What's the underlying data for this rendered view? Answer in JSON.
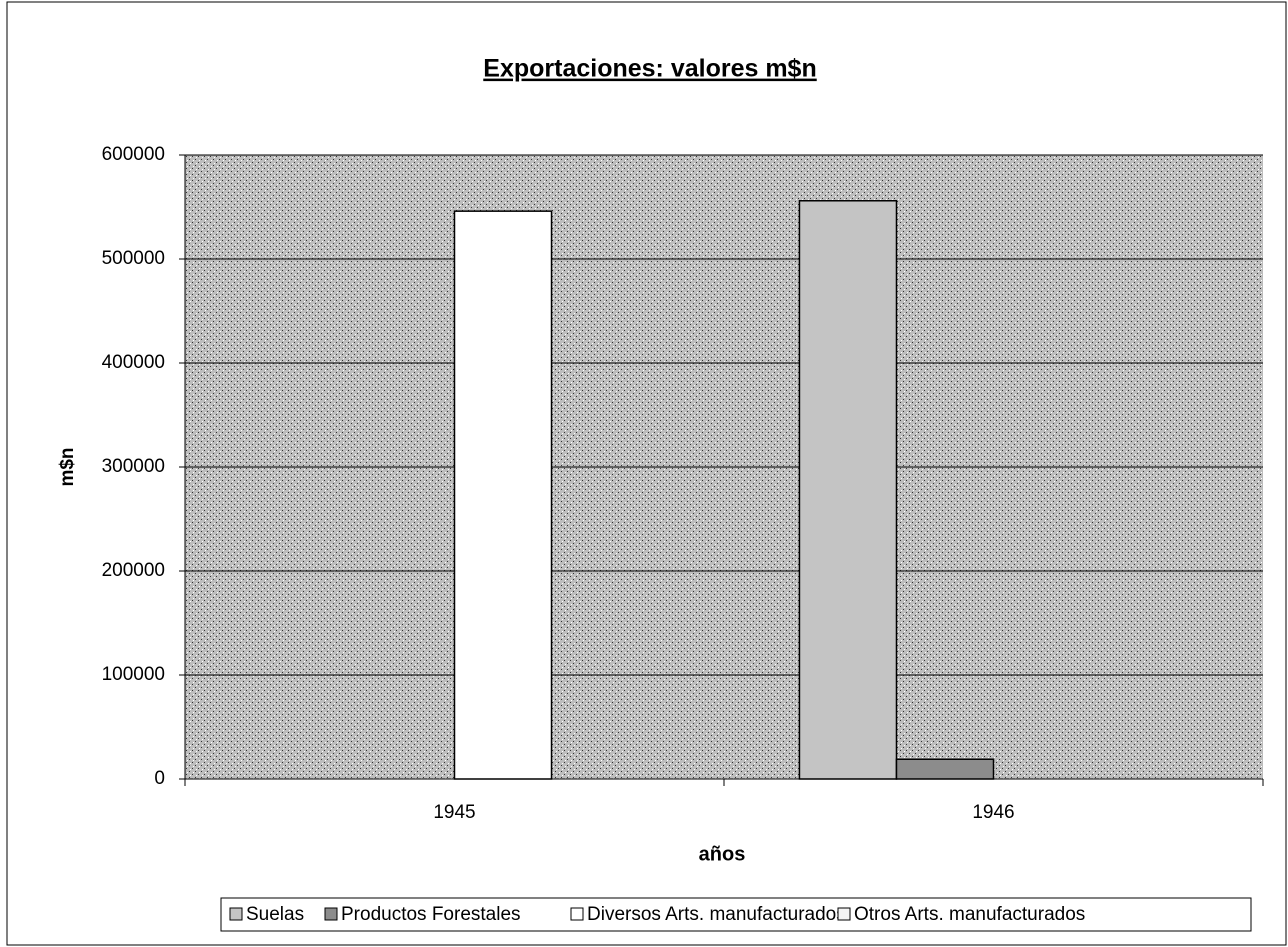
{
  "chart_data": {
    "type": "bar",
    "title": "Exportaciones: valores m$n",
    "xlabel": "años",
    "ylabel": "m$n",
    "categories": [
      "1945",
      "1946"
    ],
    "series": [
      {
        "name": "Suelas",
        "color": "#c4c4c4",
        "values": [
          0,
          556000
        ]
      },
      {
        "name": "Productos Forestales",
        "color": "#8c8c8c",
        "values": [
          0,
          19000
        ]
      },
      {
        "name": "Diversos Arts. manufacturados",
        "color": "#ffffff",
        "values": [
          546000,
          0
        ]
      },
      {
        "name": "Otros Arts. manufacturados",
        "color": "#f4f4f4",
        "values": [
          0,
          0
        ]
      }
    ],
    "ylim": [
      0,
      600000
    ],
    "yticks": [
      0,
      100000,
      200000,
      300000,
      400000,
      500000,
      600000
    ],
    "grid": true,
    "legend": "bottom"
  }
}
